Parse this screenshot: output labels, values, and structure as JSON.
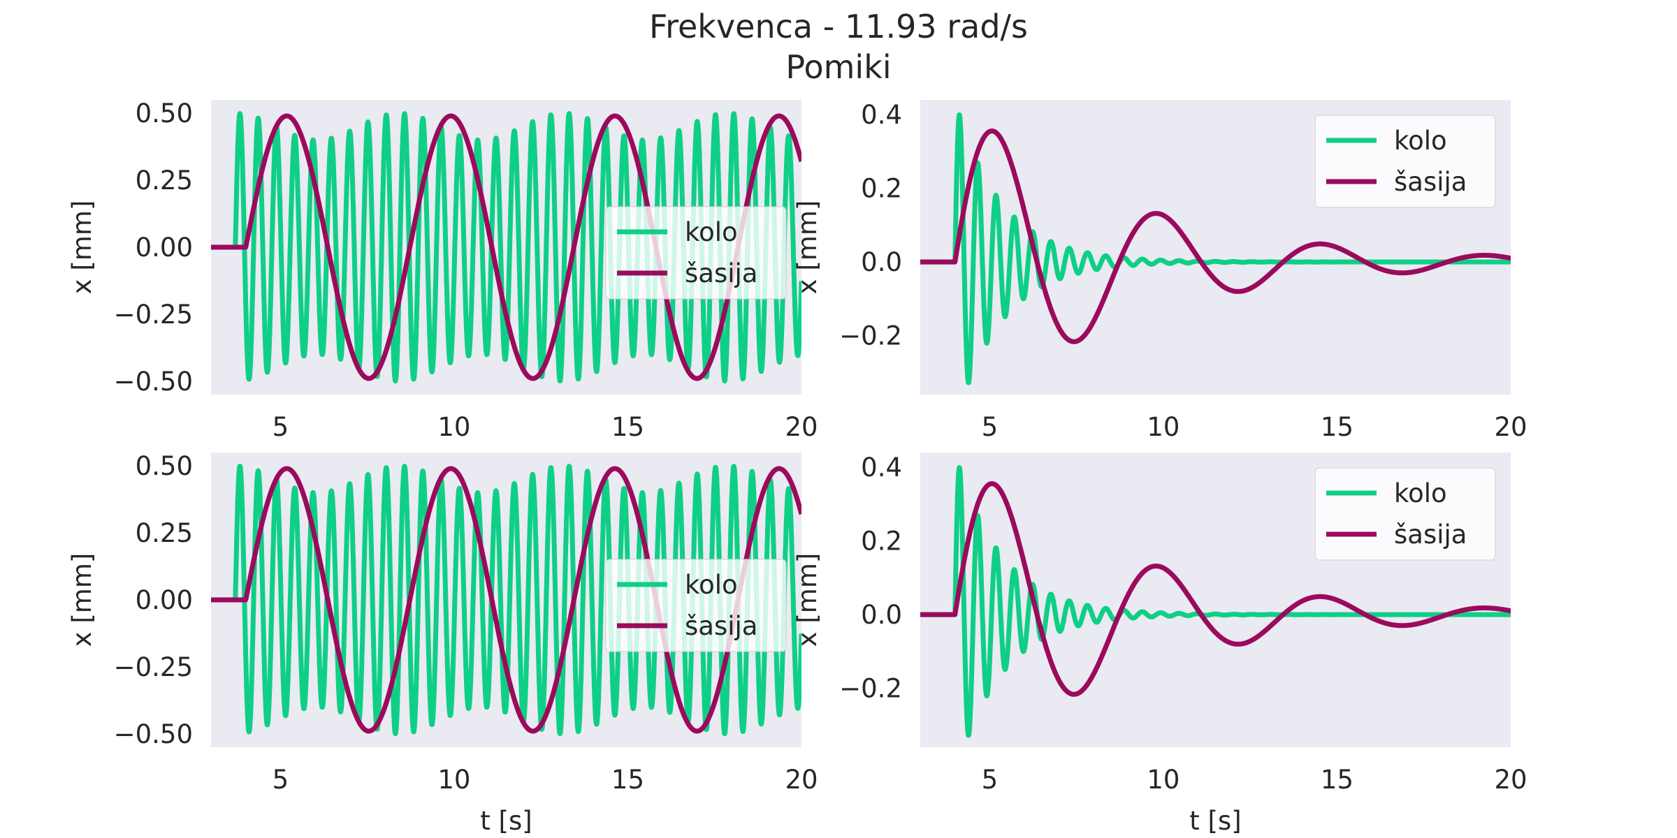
{
  "figure": {
    "title": "Frekvenca - 11.93 rad/s",
    "subtitle": "Pomiki"
  },
  "colors": {
    "kolo": "#0fcf86",
    "sasija": "#9b0a5c",
    "axes_bg": "#eaeaf2",
    "text": "#262626"
  },
  "chart_data": [
    {
      "type": "line",
      "panel": "top-left",
      "xlabel": "",
      "ylabel": "x [mm]",
      "xlim": [
        3,
        20
      ],
      "ylim": [
        -0.55,
        0.55
      ],
      "xticks": [
        5,
        10,
        15,
        20
      ],
      "yticks": [
        -0.5,
        -0.25,
        0.0,
        0.25,
        0.5
      ],
      "ytick_labels": [
        "−0.50",
        "−0.25",
        "0.00",
        "0.25",
        "0.50"
      ],
      "grid": false,
      "legend": {
        "placement": "center-right",
        "entries": [
          "kolo",
          "šasija"
        ]
      },
      "series": [
        {
          "name": "kolo",
          "color": "#0fcf86",
          "start": 3.7,
          "amplitude": 0.45,
          "omega": 11.93,
          "envelope_amp": 0.05,
          "envelope_omega": 1.33
        },
        {
          "name": "šasija",
          "color": "#9b0a5c",
          "start": 4.0,
          "amplitude": 0.49,
          "omega": 1.33
        }
      ]
    },
    {
      "type": "line",
      "panel": "top-right",
      "xlabel": "",
      "ylabel": "x [mm]",
      "xlim": [
        3,
        20
      ],
      "ylim": [
        -0.36,
        0.44
      ],
      "xticks": [
        5,
        10,
        15,
        20
      ],
      "yticks": [
        -0.2,
        0.0,
        0.2,
        0.4
      ],
      "ytick_labels": [
        "−0.2",
        "0.0",
        "0.2",
        "0.4"
      ],
      "grid": false,
      "legend": {
        "placement": "upper-right",
        "entries": [
          "kolo",
          "šasija"
        ]
      },
      "series": [
        {
          "name": "kolo",
          "color": "#0fcf86",
          "start": 4.0,
          "amplitude": 0.44,
          "omega": 11.93,
          "decay": 0.75
        },
        {
          "name": "šasija",
          "color": "#9b0a5c",
          "start": 4.0,
          "amplitude": 0.45,
          "omega": 1.33,
          "decay": 0.21
        }
      ]
    },
    {
      "type": "line",
      "panel": "bottom-left",
      "xlabel": "t [s]",
      "ylabel": "x [mm]",
      "xlim": [
        3,
        20
      ],
      "ylim": [
        -0.55,
        0.55
      ],
      "xticks": [
        5,
        10,
        15,
        20
      ],
      "yticks": [
        -0.5,
        -0.25,
        0.0,
        0.25,
        0.5
      ],
      "ytick_labels": [
        "−0.50",
        "−0.25",
        "0.00",
        "0.25",
        "0.50"
      ],
      "grid": false,
      "legend": {
        "placement": "center-right",
        "entries": [
          "kolo",
          "šasija"
        ]
      },
      "series": [
        {
          "name": "kolo",
          "color": "#0fcf86",
          "start": 3.7,
          "amplitude": 0.45,
          "omega": 11.93,
          "envelope_amp": 0.05,
          "envelope_omega": 1.33
        },
        {
          "name": "šasija",
          "color": "#9b0a5c",
          "start": 4.0,
          "amplitude": 0.49,
          "omega": 1.33
        }
      ]
    },
    {
      "type": "line",
      "panel": "bottom-right",
      "xlabel": "t [s]",
      "ylabel": "x [mm]",
      "xlim": [
        3,
        20
      ],
      "ylim": [
        -0.36,
        0.44
      ],
      "xticks": [
        5,
        10,
        15,
        20
      ],
      "yticks": [
        -0.2,
        0.0,
        0.2,
        0.4
      ],
      "ytick_labels": [
        "−0.2",
        "0.0",
        "0.2",
        "0.4"
      ],
      "grid": false,
      "legend": {
        "placement": "upper-right",
        "entries": [
          "kolo",
          "šasija"
        ]
      },
      "series": [
        {
          "name": "kolo",
          "color": "#0fcf86",
          "start": 4.0,
          "amplitude": 0.44,
          "omega": 11.93,
          "decay": 0.75
        },
        {
          "name": "šasija",
          "color": "#9b0a5c",
          "start": 4.0,
          "amplitude": 0.45,
          "omega": 1.33,
          "decay": 0.21
        }
      ]
    }
  ]
}
